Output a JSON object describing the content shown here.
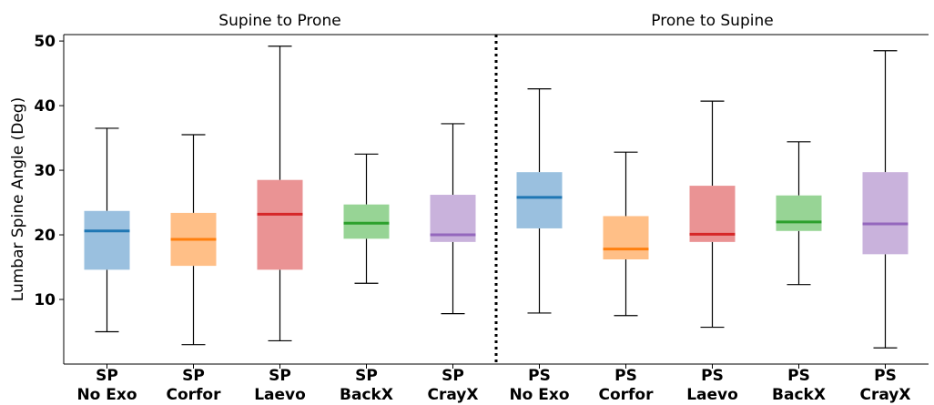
{
  "chart_data": {
    "type": "box",
    "title": "",
    "xlabel": "",
    "ylabel": "Lumbar Spine Angle (Deg)",
    "ylim": [
      0,
      51
    ],
    "yticks": [
      10,
      20,
      30,
      40,
      50
    ],
    "grid": false,
    "legend": "none",
    "sections": [
      {
        "title": "Supine to Prone",
        "from": 0,
        "to": 4
      },
      {
        "title": "Prone to Supine",
        "from": 5,
        "to": 9
      }
    ],
    "divider_after_index": 4,
    "categories": [
      {
        "line1": "SP",
        "line2": "No Exo"
      },
      {
        "line1": "SP",
        "line2": "Corfor"
      },
      {
        "line1": "SP",
        "line2": "Laevo"
      },
      {
        "line1": "SP",
        "line2": "BackX"
      },
      {
        "line1": "SP",
        "line2": "CrayX"
      },
      {
        "line1": "PS",
        "line2": "No Exo"
      },
      {
        "line1": "PS",
        "line2": "Corfor"
      },
      {
        "line1": "PS",
        "line2": "Laevo"
      },
      {
        "line1": "PS",
        "line2": "BackX"
      },
      {
        "line1": "PS",
        "line2": "CrayX"
      }
    ],
    "boxes": [
      {
        "min": 5.0,
        "q1": 14.6,
        "median": 20.6,
        "q3": 23.7,
        "max": 36.5
      },
      {
        "min": 3.0,
        "q1": 15.2,
        "median": 19.3,
        "q3": 23.4,
        "max": 35.5
      },
      {
        "min": 3.6,
        "q1": 14.6,
        "median": 23.2,
        "q3": 28.5,
        "max": 49.2
      },
      {
        "min": 12.5,
        "q1": 19.4,
        "median": 21.8,
        "q3": 24.7,
        "max": 32.5
      },
      {
        "min": 7.8,
        "q1": 18.9,
        "median": 20.0,
        "q3": 26.2,
        "max": 37.2
      },
      {
        "min": 7.9,
        "q1": 21.0,
        "median": 25.8,
        "q3": 29.7,
        "max": 42.6
      },
      {
        "min": 7.5,
        "q1": 16.2,
        "median": 17.8,
        "q3": 22.9,
        "max": 32.8
      },
      {
        "min": 5.7,
        "q1": 18.9,
        "median": 20.1,
        "q3": 27.6,
        "max": 40.7
      },
      {
        "min": 12.3,
        "q1": 20.6,
        "median": 22.0,
        "q3": 26.1,
        "max": 34.4
      },
      {
        "min": 2.5,
        "q1": 17.0,
        "median": 21.7,
        "q3": 29.7,
        "max": 48.5
      }
    ],
    "colors": {
      "box_fill": [
        "#9ac0df",
        "#ffbf87",
        "#ea9394",
        "#97d495",
        "#c9b2dc",
        "#9ac0df",
        "#ffbf87",
        "#ea9394",
        "#97d495",
        "#c9b2dc"
      ],
      "median": [
        "#1f77b4",
        "#ff7f0e",
        "#d62728",
        "#2ca02c",
        "#9467bd",
        "#1f77b4",
        "#ff7f0e",
        "#d62728",
        "#2ca02c",
        "#9467bd"
      ],
      "whisker": "#000000"
    }
  }
}
